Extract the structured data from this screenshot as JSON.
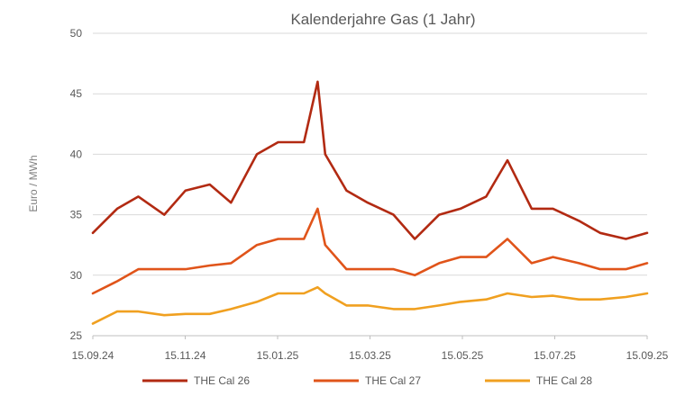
{
  "chart_data": {
    "type": "line",
    "title": "Kalenderjahre Gas (1 Jahr)",
    "xlabel": "",
    "ylabel": "Euro / MWh",
    "ylim": [
      25,
      50
    ],
    "yticks": [
      "25",
      "30",
      "35",
      "40",
      "45",
      "50"
    ],
    "x_tick_labels": [
      "15.09.24",
      "15.11.24",
      "15.01.25",
      "15.03.25",
      "15.05.25",
      "15.07.25",
      "15.09.25"
    ],
    "grid": true,
    "legend_position": "bottom",
    "x": [
      "15.09.24",
      "01.10.24",
      "15.10.24",
      "01.11.24",
      "15.11.24",
      "01.12.24",
      "15.12.24",
      "01.01.25",
      "15.01.25",
      "01.02.25",
      "10.02.25",
      "15.02.25",
      "01.03.25",
      "15.03.25",
      "01.04.25",
      "15.04.25",
      "01.05.25",
      "15.05.25",
      "01.06.25",
      "15.06.25",
      "01.07.25",
      "15.07.25",
      "01.08.25",
      "15.08.25",
      "01.09.25",
      "15.09.25"
    ],
    "series": [
      {
        "name": "THE Cal 26",
        "color": "#b22a12",
        "values": [
          33.5,
          35.5,
          36.5,
          35.0,
          37.0,
          37.5,
          36.0,
          40.0,
          41.0,
          41.0,
          46.0,
          40.0,
          37.0,
          36.0,
          35.0,
          33.0,
          35.0,
          35.5,
          36.5,
          39.5,
          35.5,
          35.5,
          34.5,
          33.5,
          33.0,
          33.5
        ]
      },
      {
        "name": "THE Cal 27",
        "color": "#e0541a",
        "values": [
          28.5,
          29.5,
          30.5,
          30.5,
          30.5,
          30.8,
          31.0,
          32.5,
          33.0,
          33.0,
          35.5,
          32.5,
          30.5,
          30.5,
          30.5,
          30.0,
          31.0,
          31.5,
          31.5,
          33.0,
          31.0,
          31.5,
          31.0,
          30.5,
          30.5,
          31.0
        ]
      },
      {
        "name": "THE Cal 28",
        "color": "#f0a020",
        "values": [
          26.0,
          27.0,
          27.0,
          26.7,
          26.8,
          26.8,
          27.2,
          27.8,
          28.5,
          28.5,
          29.0,
          28.5,
          27.5,
          27.5,
          27.2,
          27.2,
          27.5,
          27.8,
          28.0,
          28.5,
          28.2,
          28.3,
          28.0,
          28.0,
          28.2,
          28.5
        ]
      }
    ]
  }
}
